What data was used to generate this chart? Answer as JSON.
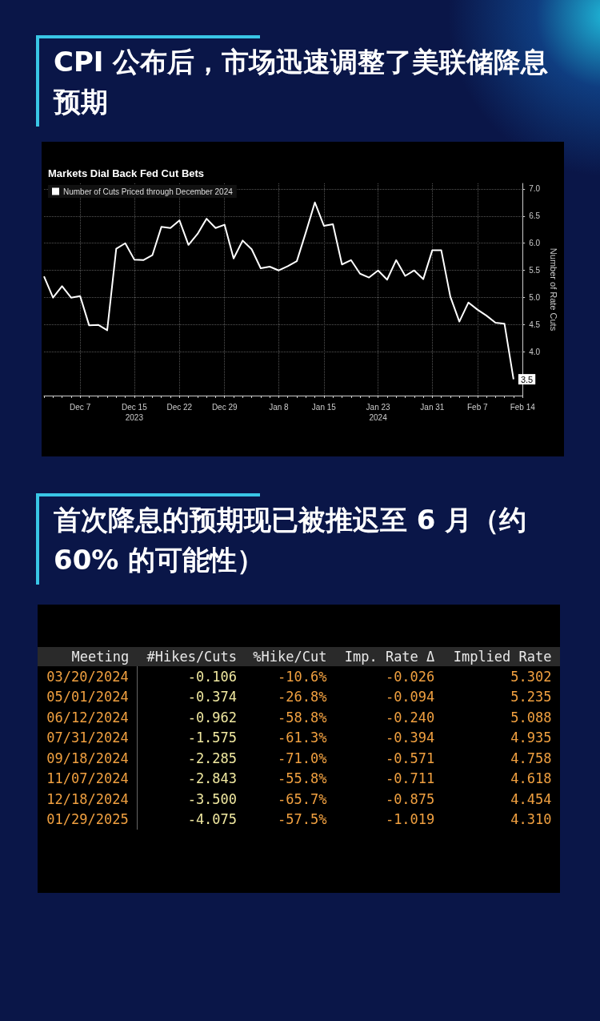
{
  "chart_data": [
    {
      "type": "line",
      "title": "CPI 公布后，市场迅速调整了美联储降息预期",
      "subtitle": "Markets Dial Back Fed Cut Bets",
      "ylabel": "Number of Rate Cuts",
      "categories": [
        null,
        null,
        null,
        null,
        "Dec 7",
        null,
        null,
        null,
        null,
        null,
        "Dec 15\n2023",
        null,
        null,
        null,
        null,
        "Dec 22",
        null,
        null,
        null,
        null,
        "Dec 29",
        null,
        null,
        null,
        null,
        null,
        "Jan 8",
        null,
        null,
        null,
        null,
        "Jan 15",
        null,
        null,
        null,
        null,
        null,
        "Jan 23\n2024",
        null,
        null,
        null,
        null,
        null,
        "Jan 31",
        null,
        null,
        null,
        null,
        "Feb 7",
        null,
        null,
        null,
        null,
        "Feb 14"
      ],
      "series": [
        {
          "name": "Number of Cuts Priced through December 2024",
          "color": "#ffffff",
          "values": [
            5.39,
            5.0,
            5.21,
            5.0,
            5.03,
            4.49,
            4.5,
            4.4,
            5.9,
            6.0,
            5.7,
            5.69,
            5.78,
            6.3,
            6.28,
            6.42,
            5.97,
            6.17,
            6.45,
            6.28,
            6.34,
            5.72,
            6.05,
            5.89,
            5.54,
            5.57,
            5.5,
            5.58,
            5.67,
            6.2,
            6.75,
            6.32,
            6.35,
            5.61,
            5.69,
            5.44,
            5.37,
            5.5,
            5.33,
            5.69,
            5.4,
            5.5,
            5.34,
            5.87,
            5.87,
            5.02,
            4.56,
            4.91,
            4.78,
            4.67,
            4.54,
            4.52,
            3.5,
            null
          ],
          "value_labels": [
            null,
            null,
            null,
            null,
            null,
            null,
            null,
            null,
            null,
            null,
            null,
            null,
            null,
            null,
            null,
            null,
            null,
            null,
            null,
            null,
            null,
            null,
            null,
            null,
            null,
            null,
            null,
            null,
            null,
            null,
            null,
            null,
            null,
            null,
            null,
            null,
            null,
            null,
            null,
            null,
            null,
            null,
            null,
            null,
            null,
            null,
            null,
            null,
            null,
            null,
            null,
            null,
            "3.5",
            null
          ]
        }
      ],
      "ylim": [
        3.2,
        7.1
      ],
      "yticks": [
        {
          "value": 4,
          "label": "4.0"
        },
        4.5,
        {
          "value": 5,
          "label": "5.0"
        },
        5.5,
        {
          "value": 6,
          "label": "6.0"
        },
        6.5,
        {
          "value": 7,
          "label": "7.0"
        }
      ],
      "grid": true,
      "legend": "top left",
      "marker": "none",
      "line_style": "solid"
    },
    {
      "type": "other",
      "title": "首次降息的预期现已被推迟至 6 月（约 60% 的可能性）",
      "categories": [
        "Meeting",
        "#Hikes/Cuts",
        "%Hike/Cut",
        "Imp. Rate Δ",
        "Implied Rate"
      ],
      "y_categories": [
        "03/20/2024",
        "05/01/2024",
        "06/12/2024",
        "07/31/2024",
        "09/18/2024",
        "11/07/2024",
        "12/18/2024",
        "01/29/2025"
      ],
      "cell_labels": [
        [
          "-0.106",
          "-10.6%",
          "-0.026",
          "5.302"
        ],
        [
          "-0.374",
          "-26.8%",
          "-0.094",
          "5.235"
        ],
        [
          "-0.962",
          "-58.8%",
          "-0.240",
          "5.088"
        ],
        [
          "-1.575",
          "-61.3%",
          "-0.394",
          "4.935"
        ],
        [
          "-2.285",
          "-71.0%",
          "-0.571",
          "4.758"
        ],
        [
          "-2.843",
          "-55.8%",
          "-0.711",
          "4.618"
        ],
        [
          "-3.500",
          "-65.7%",
          "-0.875",
          "4.454"
        ],
        [
          "-4.075",
          "-57.5%",
          "-1.019",
          "4.310"
        ]
      ]
    }
  ]
}
